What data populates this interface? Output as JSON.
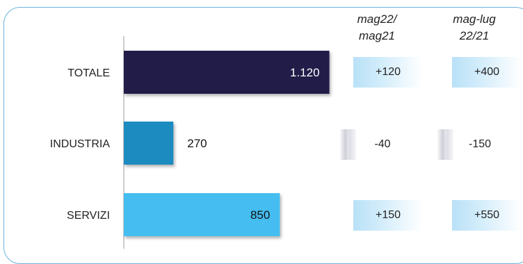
{
  "chart_data": {
    "type": "bar",
    "orientation": "horizontal",
    "categories": [
      "TOTALE",
      "INDUSTRIA",
      "SERVIZI"
    ],
    "values": [
      1120,
      270,
      850
    ],
    "value_labels": [
      "1.120",
      "270",
      "850"
    ],
    "bar_colors": [
      "#211a48",
      "#1a8bc0",
      "#45bdf0"
    ],
    "xlim": [
      0,
      1220
    ],
    "change_columns": [
      {
        "header": [
          "mag22/",
          "mag21"
        ],
        "values": [
          "+120",
          "-40",
          "+150"
        ]
      },
      {
        "header": [
          "mag-lug",
          "22/21"
        ],
        "values": [
          "+400",
          "-150",
          "+550"
        ]
      }
    ]
  }
}
